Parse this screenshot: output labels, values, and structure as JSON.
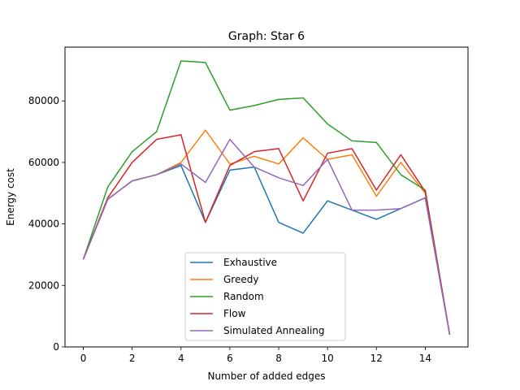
{
  "chart_data": {
    "type": "line",
    "title": "Graph: Star 6",
    "xlabel": "Number of added edges",
    "ylabel": "Energy cost",
    "xlim": [
      -0.75,
      15.75
    ],
    "ylim": [
      0,
      97500
    ],
    "xticks": [
      0,
      2,
      4,
      6,
      8,
      10,
      12,
      14
    ],
    "yticks": [
      0,
      20000,
      40000,
      60000,
      80000
    ],
    "grid": false,
    "legend_position": "lower-center",
    "x": [
      0,
      1,
      2,
      3,
      4,
      5,
      6,
      7,
      8,
      9,
      10,
      11,
      12,
      13,
      14,
      15
    ],
    "series": [
      {
        "name": "Exhaustive",
        "color": "#1f77b4",
        "values": [
          28500,
          48000,
          54000,
          56000,
          59000,
          40500,
          57500,
          58500,
          40500,
          37000,
          47500,
          44500,
          41500,
          45000,
          48500,
          4000
        ]
      },
      {
        "name": "Greedy",
        "color": "#ff7f0e",
        "values": [
          28500,
          48000,
          54000,
          56000,
          60000,
          70500,
          59500,
          62000,
          59500,
          68000,
          61000,
          62500,
          49000,
          60000,
          50000,
          4000
        ]
      },
      {
        "name": "Random",
        "color": "#2ca02c",
        "values": [
          28500,
          52000,
          63500,
          70000,
          93000,
          92500,
          77000,
          78500,
          80500,
          81000,
          72500,
          67000,
          66500,
          56000,
          51000,
          4000
        ]
      },
      {
        "name": "Flow",
        "color": "#d62728",
        "values": [
          28500,
          48500,
          60000,
          67500,
          69000,
          40500,
          59000,
          63500,
          64500,
          47500,
          63000,
          64500,
          51000,
          62500,
          50500,
          4000
        ]
      },
      {
        "name": "Simulated Annealing",
        "color": "#9467bd",
        "values": [
          28500,
          48000,
          54000,
          56000,
          59500,
          53500,
          67500,
          58500,
          55000,
          52500,
          61000,
          44500,
          44500,
          45000,
          48500,
          4000
        ]
      }
    ]
  }
}
